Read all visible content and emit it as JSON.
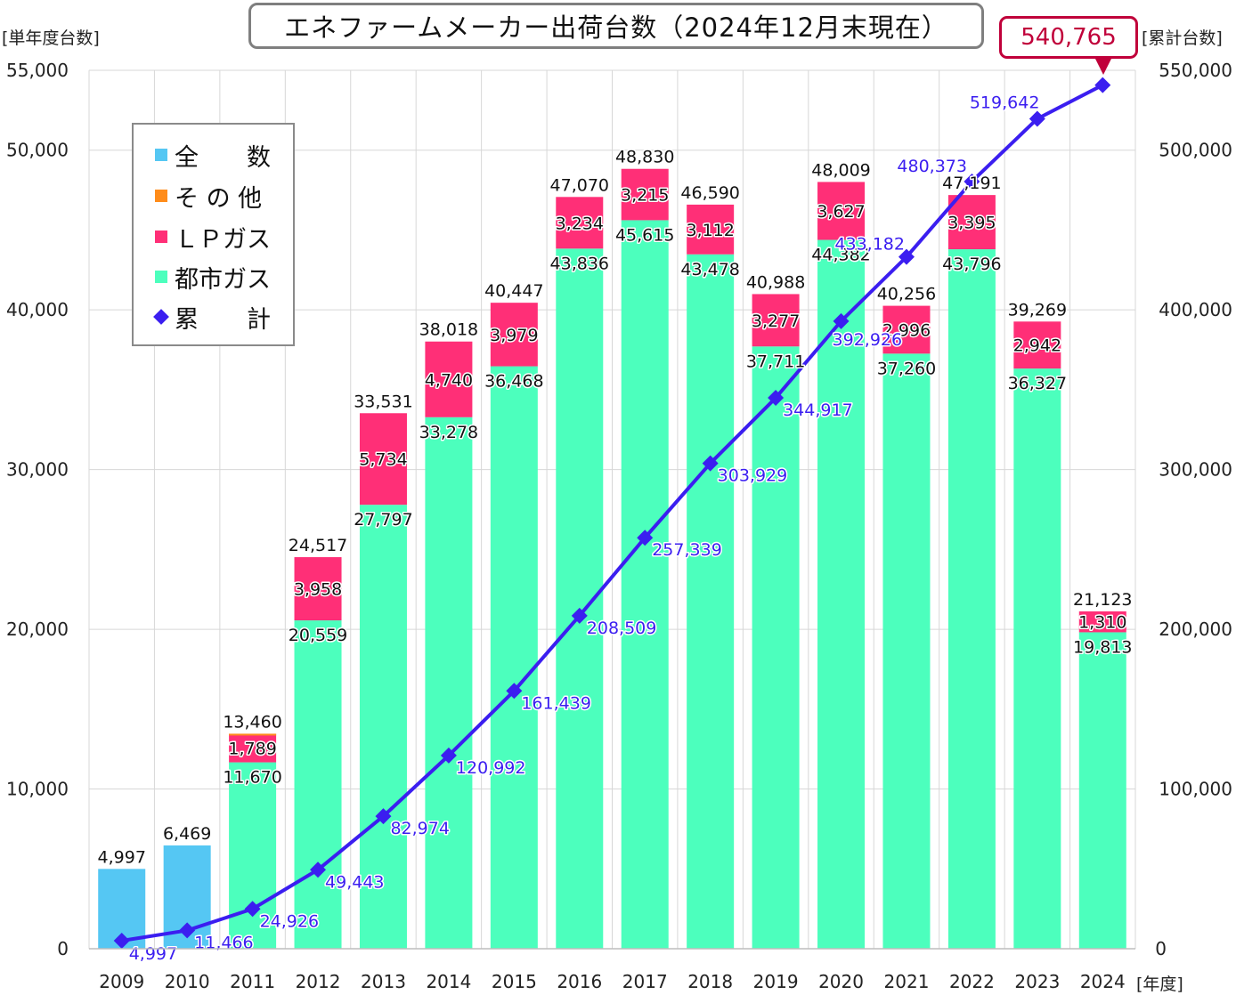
{
  "chart_data": {
    "type": "bar",
    "title": "エネファームメーカー出荷台数（2024年12月末現在）",
    "categories": [
      "2009",
      "2010",
      "2011",
      "2012",
      "2013",
      "2014",
      "2015",
      "2016",
      "2017",
      "2018",
      "2019",
      "2020",
      "2021",
      "2022",
      "2023",
      "2024"
    ],
    "series": [
      {
        "name": "全　数",
        "color": "#55c7f3",
        "values": [
          4997,
          6469,
          null,
          null,
          null,
          null,
          null,
          null,
          null,
          null,
          null,
          null,
          null,
          null,
          null,
          null
        ]
      },
      {
        "name": "都市ガス",
        "color": "#4cffbd",
        "values": [
          null,
          null,
          11670,
          20559,
          27797,
          33278,
          36468,
          43836,
          45615,
          43478,
          37711,
          44382,
          37260,
          43796,
          36327,
          19813
        ]
      },
      {
        "name": "ＬＰガス",
        "color": "#ff2f77",
        "values": [
          null,
          null,
          1789,
          3958,
          5734,
          4740,
          3979,
          3234,
          3215,
          3112,
          3277,
          3627,
          2996,
          3395,
          2942,
          1310
        ]
      },
      {
        "name": "そ の 他",
        "color": "#ff8c1a",
        "values": [
          null,
          null,
          1,
          null,
          null,
          null,
          null,
          null,
          null,
          null,
          null,
          null,
          null,
          null,
          null,
          null
        ]
      },
      {
        "name": "累　計",
        "color": "#3b1ef0",
        "axis": "right",
        "type": "line",
        "values": [
          4997,
          11466,
          24926,
          49443,
          82974,
          120992,
          161439,
          208509,
          257339,
          303929,
          344917,
          392926,
          433182,
          480373,
          519642,
          540765
        ]
      }
    ],
    "totals": [
      4997,
      6469,
      13460,
      24517,
      33531,
      38018,
      40447,
      47070,
      48830,
      46590,
      40988,
      48009,
      40256,
      47191,
      39269,
      21123
    ],
    "total_labels": [
      "4,997",
      "6,469",
      "13,460",
      "24,517",
      "33,531",
      "38,018",
      "40,447",
      "47,070",
      "48,830",
      "46,590",
      "40,988",
      "48,009",
      "40,256",
      "47,191",
      "39,269",
      "21,123"
    ],
    "city_labels": [
      "",
      "",
      "11,670",
      "20,559",
      "27,797",
      "33,278",
      "36,468",
      "43,836",
      "45,615",
      "43,478",
      "37,711",
      "44,382",
      "37,260",
      "43,796",
      "36,327",
      "19,813"
    ],
    "lp_labels": [
      "",
      "",
      "1,789",
      "3,958",
      "5,734",
      "4,740",
      "3,979",
      "3,234",
      "3,215",
      "3,112",
      "3,277",
      "3,627",
      "2,996",
      "3,395",
      "2,942",
      "1,310"
    ],
    "cum_labels": [
      "4,997",
      "11,466",
      "24,926",
      "49,443",
      "82,974",
      "120,992",
      "161,439",
      "208,509",
      "257,339",
      "303,929",
      "344,917",
      "392,926",
      "433,182",
      "480,373",
      "519,642"
    ],
    "ylabel_left": "[単年度台数]",
    "ylabel_right": "[累計台数]",
    "xlabel": "[年度]",
    "ylim_left": [
      0,
      55000
    ],
    "ylim_right": [
      0,
      550000
    ],
    "yticks_left": [
      "0",
      "10,000",
      "20,000",
      "30,000",
      "40,000",
      "50,000",
      "55,000"
    ],
    "yticks_left_values": [
      0,
      10000,
      20000,
      30000,
      40000,
      50000,
      55000
    ],
    "yticks_right": [
      "0",
      "100,000",
      "200,000",
      "300,000",
      "400,000",
      "500,000",
      "550,000"
    ],
    "yticks_right_values": [
      0,
      100000,
      200000,
      300000,
      400000,
      500000,
      550000
    ],
    "grid": true,
    "legend_position": "top-left",
    "callout": "540,765"
  },
  "legend": {
    "items": [
      {
        "label": "全　　数",
        "color": "#55c7f3",
        "marker": "square"
      },
      {
        "label": "そ の 他",
        "color": "#ff8c1a",
        "marker": "square"
      },
      {
        "label": "ＬＰガス",
        "color": "#ff2f77",
        "marker": "square"
      },
      {
        "label": "都市ガス",
        "color": "#4cffbd",
        "marker": "square"
      },
      {
        "label": "累　　計",
        "color": "#3b1ef0",
        "marker": "diamond"
      }
    ]
  }
}
